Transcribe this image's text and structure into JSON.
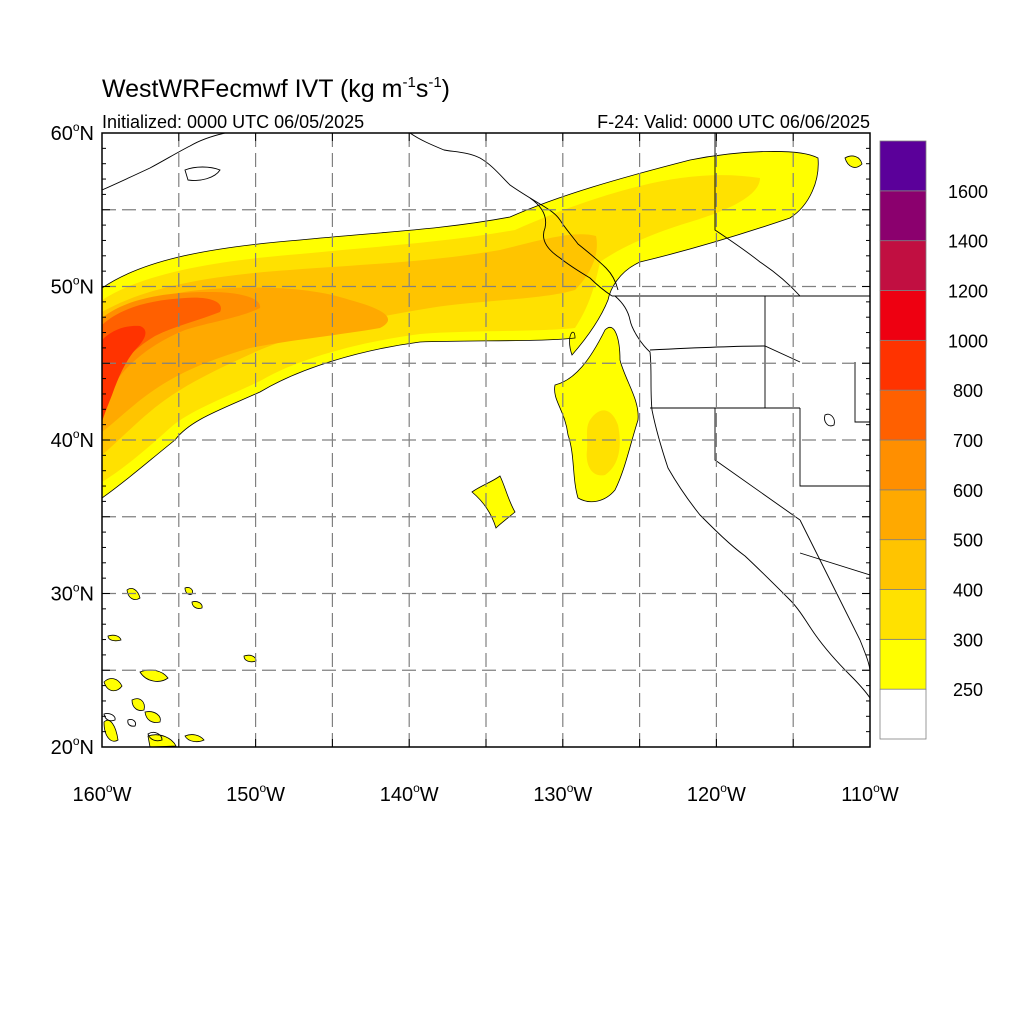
{
  "map": {
    "title_main": "WestWRFecmwf IVT (kg m",
    "title_sup1": "-1",
    "title_mid": "s",
    "title_sup2": "-1",
    "title_end": ")",
    "initialized_text": "Initialized: 0000 UTC 06/05/2025",
    "valid_text": "F-24: Valid: 0000 UTC 06/06/2025",
    "lat_range": [
      20,
      60
    ],
    "lon_range": [
      -160,
      -110
    ],
    "lat_ticks": [
      {
        "value": 60,
        "num": "60",
        "hemi": "N"
      },
      {
        "value": 50,
        "num": "50",
        "hemi": "N"
      },
      {
        "value": 40,
        "num": "40",
        "hemi": "N"
      },
      {
        "value": 30,
        "num": "30",
        "hemi": "N"
      },
      {
        "value": 20,
        "num": "20",
        "hemi": "N"
      }
    ],
    "lon_ticks": [
      {
        "value": -160,
        "num": "160",
        "hemi": "W"
      },
      {
        "value": -150,
        "num": "150",
        "hemi": "W"
      },
      {
        "value": -140,
        "num": "140",
        "hemi": "W"
      },
      {
        "value": -130,
        "num": "130",
        "hemi": "W"
      },
      {
        "value": -120,
        "num": "120",
        "hemi": "W"
      },
      {
        "value": -110,
        "num": "110",
        "hemi": "W"
      }
    ],
    "grid_lat_lines": [
      25,
      30,
      35,
      40,
      45,
      50,
      55
    ],
    "grid_lon_lines": [
      -155,
      -150,
      -145,
      -140,
      -135,
      -130,
      -125,
      -120,
      -115
    ],
    "gridlines": true,
    "degree_symbol": "o"
  },
  "colorbar": {
    "labels": [
      "1600",
      "1400",
      "1200",
      "1000",
      "800",
      "700",
      "600",
      "500",
      "400",
      "300",
      "250"
    ],
    "colors": [
      "#ffffff",
      "#ffff00",
      "#ffe100",
      "#ffc400",
      "#ffa900",
      "#ff8f00",
      "#ff6000",
      "#ff3300",
      "#ee0011",
      "#c10f41",
      "#8b006e",
      "#5b009a"
    ]
  },
  "ivt_levels": [
    {
      "min": 250,
      "color": "#ffff00"
    },
    {
      "min": 300,
      "color": "#ffe100"
    },
    {
      "min": 400,
      "color": "#ffc400"
    },
    {
      "min": 500,
      "color": "#ffa900"
    },
    {
      "min": 600,
      "color": "#ff8f00"
    },
    {
      "min": 700,
      "color": "#ff6000"
    },
    {
      "min": 800,
      "color": "#ff3300"
    }
  ]
}
